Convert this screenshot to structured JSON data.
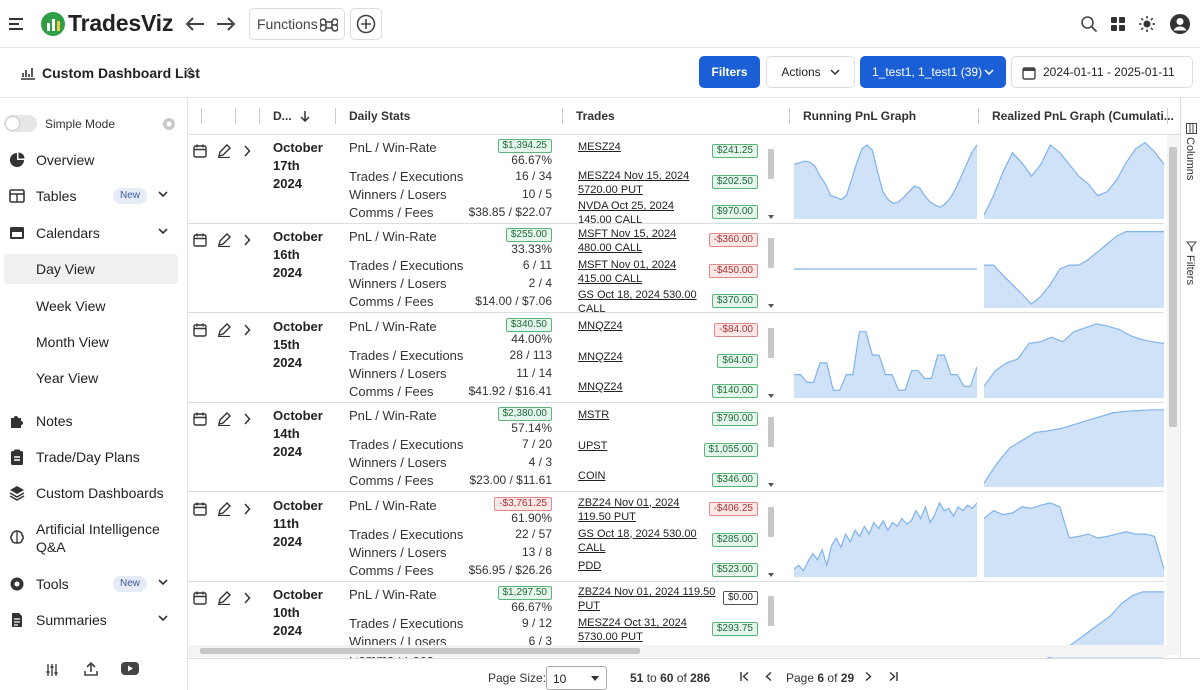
{
  "app": {
    "name": "TradesViz"
  },
  "topbar": {
    "functions_label": "Functions"
  },
  "subbar": {
    "title": "Custom Dashboard List",
    "filters_label": "Filters",
    "actions_label": "Actions",
    "account_label": "1_test1, 1_test1 (39)",
    "date_range": "2024-01-11 - 2025-01-11"
  },
  "sidebar": {
    "simple_mode_label": "Simple Mode",
    "items": [
      {
        "label": "Overview",
        "icon": "pie-chart-icon"
      },
      {
        "label": "Tables",
        "icon": "table-icon",
        "badge": "New"
      },
      {
        "label": "Calendars",
        "icon": "calendar-icon"
      },
      {
        "label": "Day View"
      },
      {
        "label": "Week View"
      },
      {
        "label": "Month View"
      },
      {
        "label": "Year View"
      },
      {
        "label": "Notes",
        "icon": "puzzle-icon"
      },
      {
        "label": "Trade/Day Plans",
        "icon": "clipboard-icon"
      },
      {
        "label": "Custom Dashboards",
        "icon": "layers-icon"
      },
      {
        "label": "Artificial Intelligence",
        "label2": "Q&A",
        "icon": "brain-icon"
      },
      {
        "label": "Tools",
        "icon": "gear-icon",
        "badge": "New"
      },
      {
        "label": "Summaries",
        "icon": "document-icon"
      }
    ]
  },
  "grid": {
    "headers": {
      "date": "D...",
      "stats": "Daily Stats",
      "trades": "Trades",
      "running": "Running PnL Graph",
      "realized": "Realized PnL Graph (Cumulati..."
    },
    "stat_labels": {
      "pnl": "PnL / Win-Rate",
      "trades": "Trades / Executions",
      "winners": "Winners / Losers",
      "comms": "Comms / Fees"
    },
    "rows": [
      {
        "date1": "October",
        "date2": "17th",
        "date3": "2024",
        "pnl": "$1,394.25",
        "pnl_sign": "pos",
        "winrate": "66.67%",
        "trades": "16 / 34",
        "winners": "10 / 5",
        "comms": "$38.85 / $22.07",
        "trade_items": [
          {
            "l1": "MESZ24",
            "l2": "",
            "v": "$241.25",
            "s": "pos"
          },
          {
            "l1": "MESZ24 Nov 15, 2024",
            "l2": "5720.00 PUT",
            "v": "$202.50",
            "s": "pos"
          },
          {
            "l1": "NVDA Oct 25, 2024",
            "l2": "145.00 CALL",
            "v": "$970.00",
            "s": "pos"
          }
        ],
        "running": [
          0.7,
          0.72,
          0.74,
          0.73,
          0.68,
          0.55,
          0.45,
          0.3,
          0.28,
          0.25,
          0.3,
          0.5,
          0.72,
          0.9,
          0.95,
          0.88,
          0.6,
          0.35,
          0.25,
          0.2,
          0.22,
          0.28,
          0.35,
          0.42,
          0.4,
          0.3,
          0.22,
          0.18,
          0.15,
          0.2,
          0.28,
          0.4,
          0.55,
          0.7,
          0.85,
          0.95
        ],
        "realized": [
          0.05,
          0.3,
          0.6,
          0.85,
          0.72,
          0.55,
          0.7,
          0.95,
          0.85,
          0.7,
          0.55,
          0.45,
          0.3,
          0.35,
          0.5,
          0.72,
          0.9,
          0.98,
          0.86,
          0.7
        ]
      },
      {
        "date1": "October",
        "date2": "16th",
        "date3": "2024",
        "pnl": "$255.00",
        "pnl_sign": "pos",
        "winrate": "33.33%",
        "trades": "6 / 11",
        "winners": "2 / 4",
        "comms": "$14.00 / $7.06",
        "trade_items": [
          {
            "l1": "MSFT Nov 15, 2024",
            "l2": "480.00 CALL",
            "v": "-$360.00",
            "s": "neg"
          },
          {
            "l1": "MSFT Nov 01, 2024",
            "l2": "415.00 CALL",
            "v": "-$450.00",
            "s": "neg"
          },
          {
            "l1": "GS Oct 18, 2024 530.00",
            "l2": "CALL",
            "v": "$370.00",
            "s": "pos"
          }
        ],
        "running": [
          0.5,
          0.5,
          0.5,
          0.5,
          0.5,
          0.5,
          0.5,
          0.5,
          0.5,
          0.5,
          0.5,
          0.5,
          0.5,
          0.5,
          0.5,
          0.5,
          0.5,
          0.5,
          0.5,
          0.5
        ],
        "realized": [
          0.55,
          0.55,
          0.42,
          0.3,
          0.18,
          0.05,
          0.15,
          0.3,
          0.5,
          0.55,
          0.55,
          0.62,
          0.72,
          0.82,
          0.92,
          0.98,
          0.98,
          0.98,
          0.98,
          0.98
        ]
      },
      {
        "date1": "October",
        "date2": "15th",
        "date3": "2024",
        "pnl": "$340.50",
        "pnl_sign": "pos",
        "winrate": "44.00%",
        "trades": "28 / 113",
        "winners": "11 / 14",
        "comms": "$41.92 / $16.41",
        "trade_items": [
          {
            "l1": "MNQZ24",
            "l2": "",
            "v": "-$84.00",
            "s": "neg"
          },
          {
            "l1": "MNQZ24",
            "l2": "",
            "v": "$64.00",
            "s": "pos"
          },
          {
            "l1": "MNQZ24",
            "l2": "",
            "v": "$140.00",
            "s": "pos"
          }
        ],
        "running": [
          0.3,
          0.3,
          0.2,
          0.2,
          0.45,
          0.45,
          0.1,
          0.1,
          0.3,
          0.3,
          0.85,
          0.85,
          0.55,
          0.55,
          0.3,
          0.3,
          0.1,
          0.1,
          0.35,
          0.35,
          0.25,
          0.25,
          0.55,
          0.55,
          0.3,
          0.3,
          0.15,
          0.15,
          0.4
        ],
        "realized": [
          0.15,
          0.35,
          0.45,
          0.5,
          0.7,
          0.72,
          0.78,
          0.72,
          0.85,
          0.9,
          0.95,
          0.92,
          0.88,
          0.8,
          0.75,
          0.72,
          0.7
        ]
      },
      {
        "date1": "October",
        "date2": "14th",
        "date3": "2024",
        "pnl": "$2,380.00",
        "pnl_sign": "pos",
        "winrate": "57.14%",
        "trades": "7 / 20",
        "winners": "4 / 3",
        "comms": "$23.00 / $11.61",
        "trade_items": [
          {
            "l1": "MSTR",
            "l2": "",
            "v": "$790.00",
            "s": "pos"
          },
          {
            "l1": "UPST",
            "l2": "",
            "v": "$1,055.00",
            "s": "pos"
          },
          {
            "l1": "COIN",
            "l2": "",
            "v": "$346.00",
            "s": "pos"
          }
        ],
        "running": [
          0,
          0,
          0,
          0,
          0,
          0,
          0,
          0,
          0,
          0
        ],
        "realized": [
          0.05,
          0.3,
          0.5,
          0.6,
          0.7,
          0.72,
          0.75,
          0.8,
          0.85,
          0.9,
          0.95,
          0.97,
          0.98,
          0.99,
          0.99
        ]
      },
      {
        "date1": "October",
        "date2": "11th",
        "date3": "2024",
        "pnl": "-$3,761.25",
        "pnl_sign": "neg",
        "winrate": "61.90%",
        "trades": "22 / 57",
        "winners": "13 / 8",
        "comms": "$56.95 / $26.26",
        "trade_items": [
          {
            "l1": "ZBZ24 Nov 01, 2024",
            "l2": "119.50 PUT",
            "v": "-$406.25",
            "s": "neg"
          },
          {
            "l1": "GS Oct 18, 2024 530.00",
            "l2": "CALL",
            "v": "$285.00",
            "s": "pos"
          },
          {
            "l1": "PDD",
            "l2": "",
            "v": "$523.00",
            "s": "pos"
          }
        ],
        "running": [
          0.1,
          0.15,
          0.08,
          0.2,
          0.3,
          0.22,
          0.35,
          0.15,
          0.4,
          0.5,
          0.38,
          0.55,
          0.45,
          0.6,
          0.52,
          0.65,
          0.55,
          0.7,
          0.62,
          0.72,
          0.6,
          0.7,
          0.65,
          0.75,
          0.68,
          0.72,
          0.85,
          0.75,
          0.9,
          0.7,
          0.8,
          0.95,
          0.85,
          0.88,
          0.78,
          0.9,
          0.85,
          0.92,
          0.88,
          0.95
        ],
        "realized": [
          0.75,
          0.85,
          0.8,
          0.82,
          0.9,
          0.88,
          0.92,
          0.95,
          0.9,
          0.5,
          0.52,
          0.55,
          0.5,
          0.52,
          0.55,
          0.58,
          0.55,
          0.55,
          0.52,
          0.1
        ]
      },
      {
        "date1": "October",
        "date2": "10th",
        "date3": "2024",
        "pnl": "$1,297.50",
        "pnl_sign": "pos",
        "winrate": "66.67%",
        "trades": "9 / 12",
        "winners": "6 / 3",
        "comms": "",
        "trade_items": [
          {
            "l1": "ZBZ24 Nov 01, 2024 119.50",
            "l2": "PUT",
            "v": "$0.00",
            "s": "neu"
          },
          {
            "l1": "MESZ24 Oct 31, 2024",
            "l2": "5730.00 PUT",
            "v": "$293.75",
            "s": "pos"
          }
        ],
        "running": [
          0,
          0,
          0,
          0,
          0,
          0,
          0,
          0,
          0,
          0
        ],
        "realized": [
          0.0,
          0.0,
          0.0,
          0.0,
          0.0,
          0.05,
          0.1,
          0.15,
          0.25,
          0.35,
          0.45,
          0.55,
          0.65,
          0.8,
          0.9,
          0.95,
          0.95,
          0.95
        ]
      }
    ]
  },
  "right_panel": {
    "columns": "Columns",
    "filters": "Filters"
  },
  "footer": {
    "page_size_label": "Page Size:",
    "page_size": "10",
    "range_from": "51",
    "range_to": "60",
    "total": "286",
    "page_label": "Page",
    "page": "6",
    "of": "of",
    "to": "to",
    "pages": "29"
  },
  "colors": {
    "accent": "#1a5fd6",
    "graph_fill": "#cfe2f8",
    "graph_line": "#7fb3ec"
  }
}
